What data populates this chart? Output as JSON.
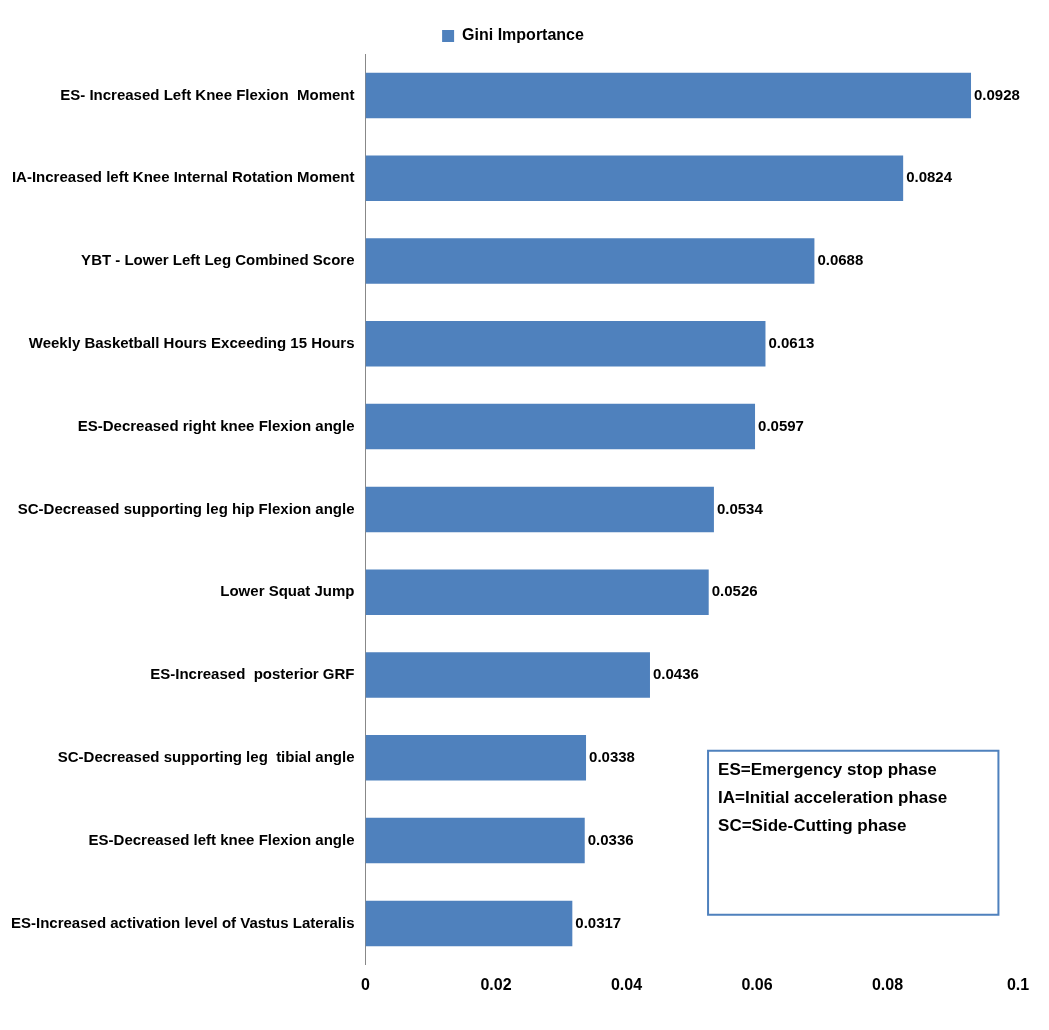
{
  "chart_data": {
    "type": "bar",
    "orientation": "horizontal",
    "categories": [
      "ES- Increased Left Knee Flexion  Moment",
      "IA-Increased left Knee Internal Rotation Moment",
      "YBT - Lower Left Leg Combined Score",
      "Weekly Basketball Hours Exceeding 15 Hours",
      "ES-Decreased right knee Flexion angle",
      "SC-Decreased supporting leg hip Flexion angle",
      "Lower Squat Jump",
      "ES-Increased  posterior GRF",
      "SC-Decreased supporting leg  tibial angle",
      "ES-Decreased left knee Flexion angle",
      "ES-Increased activation level of Vastus Lateralis"
    ],
    "series": [
      {
        "name": "Gini Importance",
        "color": "#4f81bd",
        "values": [
          0.0928,
          0.0824,
          0.0688,
          0.0613,
          0.0597,
          0.0534,
          0.0526,
          0.0436,
          0.0338,
          0.0336,
          0.0317
        ]
      }
    ],
    "xlim": [
      0,
      0.1
    ],
    "xticks": [
      0,
      0.02,
      0.04,
      0.06,
      0.08,
      0.1
    ],
    "data_labels": true,
    "grid": false,
    "legend": "top",
    "annotations": [
      "ES=Emergency stop phase",
      "IA=Initial acceleration phase",
      "SC=Side-Cutting phase"
    ]
  }
}
